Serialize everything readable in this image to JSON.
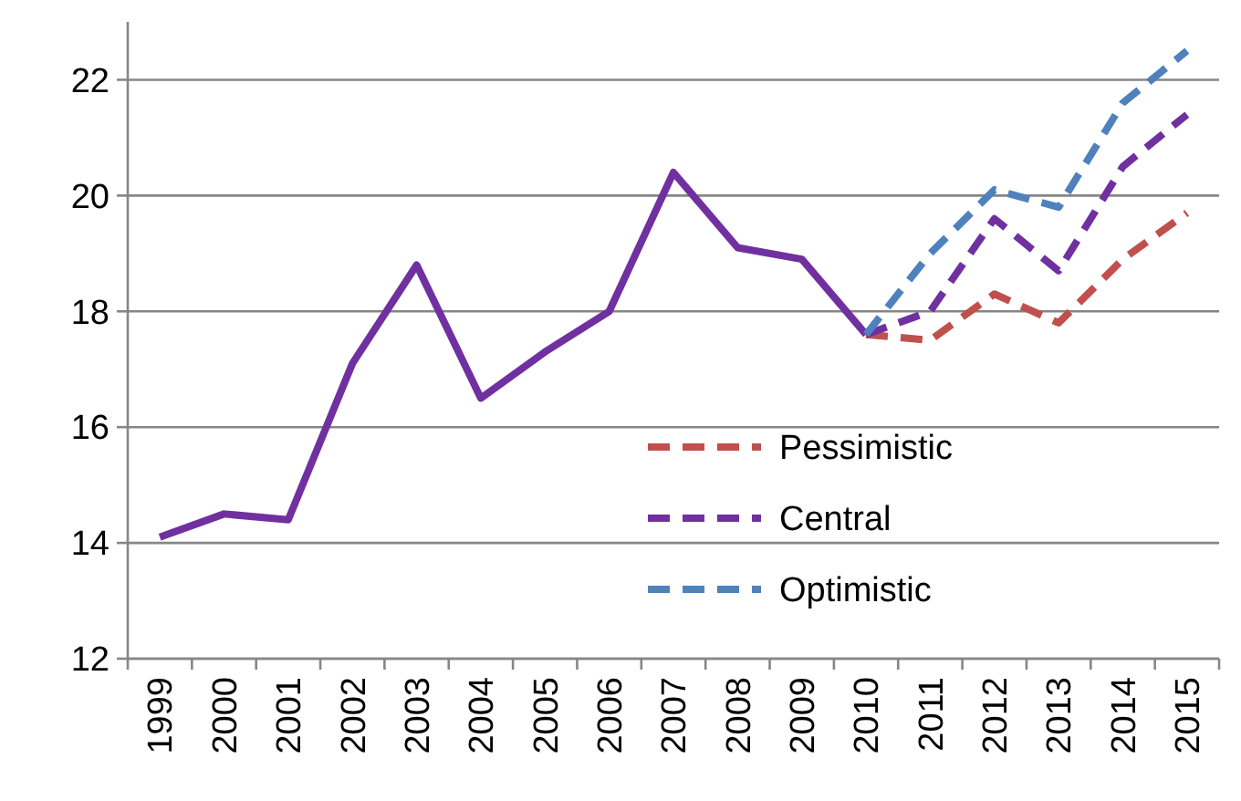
{
  "chart_data": {
    "type": "line",
    "categories": [
      "1999",
      "2000",
      "2001",
      "2002",
      "2003",
      "2004",
      "2005",
      "2006",
      "2007",
      "2008",
      "2009",
      "2010",
      "2011",
      "2012",
      "2013",
      "2014",
      "2015"
    ],
    "ylim": [
      12,
      23
    ],
    "yticks": [
      12,
      14,
      16,
      18,
      20,
      22
    ],
    "grid": "y",
    "legend": "bottom right",
    "marker": "none",
    "series": [
      {
        "color": "#7030a0",
        "line_style": "solid",
        "values": [
          14.1,
          14.5,
          14.4,
          17.1,
          18.8,
          16.5,
          17.3,
          18.0,
          20.4,
          19.1,
          18.9,
          17.6,
          null,
          null,
          null,
          null,
          null
        ]
      },
      {
        "name": "Pessimistic",
        "color": "#c0504d",
        "line_style": "dashed",
        "values": [
          null,
          null,
          null,
          null,
          null,
          null,
          null,
          null,
          null,
          null,
          null,
          17.6,
          17.5,
          18.3,
          17.8,
          18.9,
          19.7
        ]
      },
      {
        "name": "Central",
        "color": "#7030a0",
        "line_style": "dashed",
        "values": [
          null,
          null,
          null,
          null,
          null,
          null,
          null,
          null,
          null,
          null,
          null,
          17.6,
          18.0,
          19.6,
          18.7,
          20.5,
          21.4
        ]
      },
      {
        "name": "Optimistic",
        "color": "#4f81bd",
        "line_style": "dashed",
        "values": [
          null,
          null,
          null,
          null,
          null,
          null,
          null,
          null,
          null,
          null,
          null,
          17.6,
          19.0,
          20.1,
          19.8,
          21.6,
          22.5
        ]
      }
    ]
  }
}
